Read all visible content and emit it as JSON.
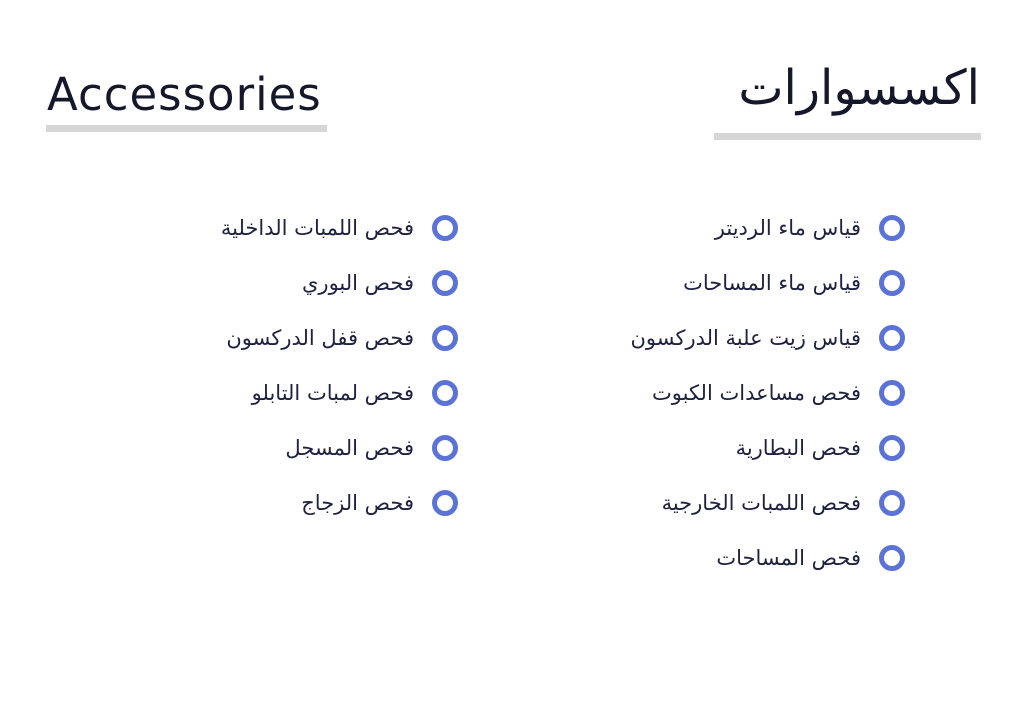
{
  "header": {
    "title_en": "Accessories",
    "title_ar": "اكسسوارات"
  },
  "accent_color": "#5b73d6",
  "bullet_icon": "ring-bullet",
  "right_list": [
    "قياس ماء الرديتر",
    "قياس ماء المساحات",
    "قياس زيت علبة الدركسون",
    "فحص مساعدات الكبوت",
    "فحص البطارية",
    "فحص اللمبات الخارجية",
    "فحص المساحات"
  ],
  "left_list": [
    "فحص اللمبات الداخلية",
    "فحص البوري",
    "فحص قفل الدركسون",
    "فحص لمبات التابلو",
    "فحص المسجل",
    "فحص الزجاج"
  ]
}
